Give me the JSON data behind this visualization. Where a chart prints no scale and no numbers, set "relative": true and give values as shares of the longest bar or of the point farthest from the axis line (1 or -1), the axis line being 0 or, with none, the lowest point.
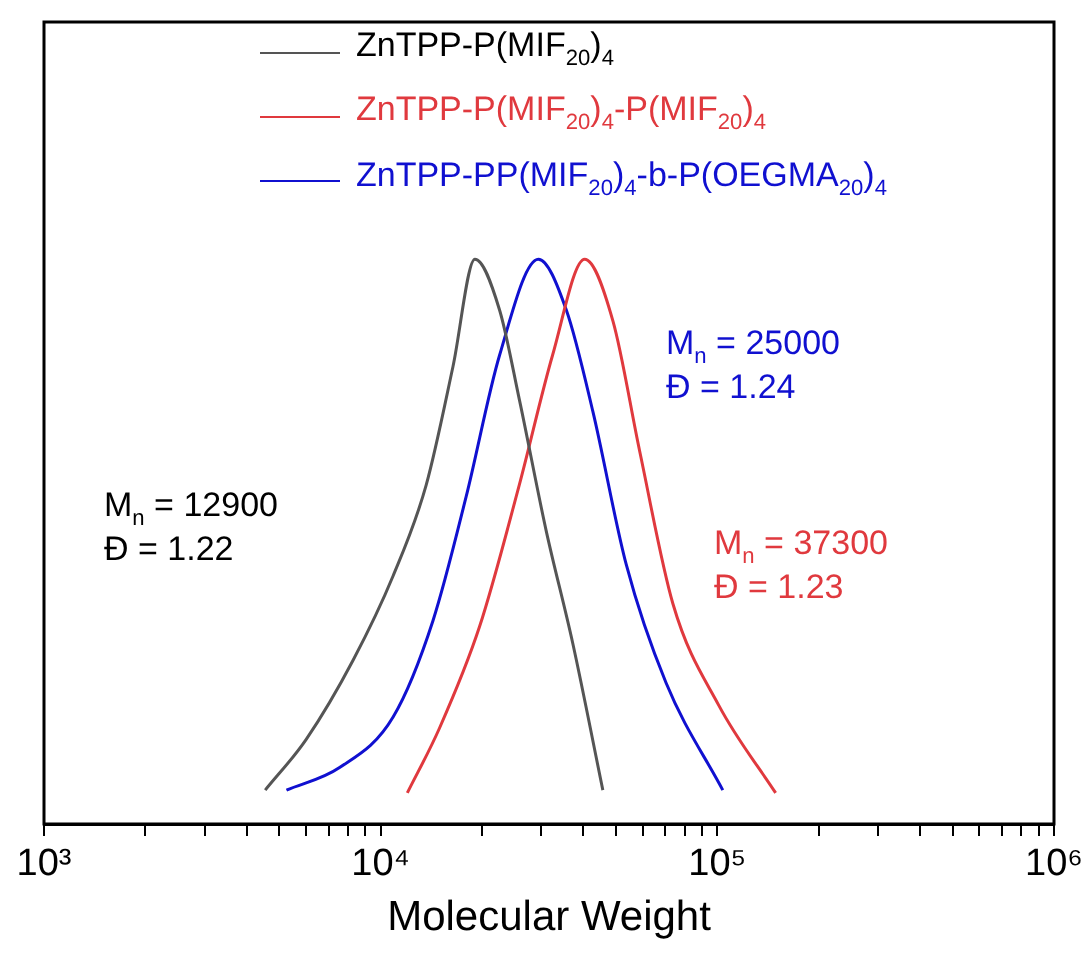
{
  "chart_data": {
    "type": "line",
    "relative": true,
    "xlabel": "Molecular Weight",
    "log": "x",
    "xlim": [
      1000,
      1000000
    ],
    "xticks": [
      {
        "value": 1000,
        "label": "10³"
      },
      {
        "value": 2000,
        "label": null
      },
      {
        "value": 3000,
        "label": null
      },
      {
        "value": 4000,
        "label": null
      },
      {
        "value": 5000,
        "label": null
      },
      {
        "value": 6000,
        "label": null
      },
      {
        "value": 7000,
        "label": null
      },
      {
        "value": 8000,
        "label": null
      },
      {
        "value": 9000,
        "label": null
      },
      {
        "value": 10000,
        "label": "10⁴"
      },
      {
        "value": 20000,
        "label": null
      },
      {
        "value": 30000,
        "label": null
      },
      {
        "value": 40000,
        "label": null
      },
      {
        "value": 50000,
        "label": null
      },
      {
        "value": 60000,
        "label": null
      },
      {
        "value": 70000,
        "label": null
      },
      {
        "value": 80000,
        "label": null
      },
      {
        "value": 90000,
        "label": null
      },
      {
        "value": 100000,
        "label": "10⁵"
      },
      {
        "value": 200000,
        "label": null
      },
      {
        "value": 300000,
        "label": null
      },
      {
        "value": 400000,
        "label": null
      },
      {
        "value": 500000,
        "label": null
      },
      {
        "value": 600000,
        "label": null
      },
      {
        "value": 700000,
        "label": null
      },
      {
        "value": 800000,
        "label": null
      },
      {
        "value": 900000,
        "label": null
      },
      {
        "value": 1000000,
        "label": "10⁶"
      }
    ],
    "legend": "top",
    "grid": false,
    "marker": "none",
    "line_style": "solid",
    "tick_labels": "x",
    "annotations": [
      "M$_{n}$ = 12900",
      "Đ = 1.22",
      "M$_{n}$ = 25000",
      "Đ = 1.24",
      "M$_{n}$ = 37300",
      "Đ = 1.23"
    ],
    "series": [
      {
        "name": "ZnTPP-P(MIF$_{20}$)$_{4}$",
        "color": "#555555",
        "x": [
          4540,
          6010,
          8280,
          10900,
          13650,
          16400,
          19050,
          22550,
          25850,
          31000,
          37200,
          45700
        ],
        "values": [
          0.06,
          0.15,
          0.29,
          0.44,
          0.6,
          0.81,
          1,
          0.91,
          0.75,
          0.52,
          0.32,
          0.06
        ]
      },
      {
        "name": "ZnTPP-P(MIF$_{20}$)$_{4}$-P(MIF$_{20}$)$_{4}$",
        "color": "#e0393e",
        "x": [
          12000,
          14960,
          19680,
          25800,
          32400,
          40350,
          49000,
          58800,
          73800,
          101000,
          149000
        ],
        "values": [
          0.055,
          0.17,
          0.35,
          0.6,
          0.83,
          1,
          0.89,
          0.66,
          0.39,
          0.21,
          0.055
        ]
      },
      {
        "name": "ZnTPP-PP(MIF$_{20}$)$_{4}$-b-P(OEGMA$_{20}$)$_{4}$",
        "color": "#1010d0",
        "x": [
          5250,
          7550,
          10900,
          14300,
          17950,
          22550,
          29400,
          35600,
          42700,
          53600,
          70400,
          103800
        ],
        "values": [
          0.06,
          0.1,
          0.19,
          0.36,
          0.58,
          0.83,
          1,
          0.91,
          0.73,
          0.46,
          0.25,
          0.06
        ]
      }
    ]
  }
}
